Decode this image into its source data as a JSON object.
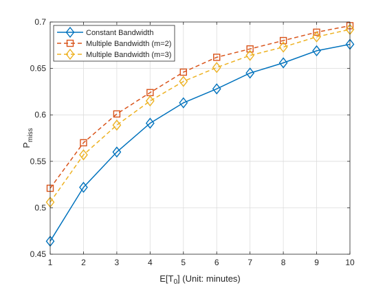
{
  "chart_data": {
    "type": "line",
    "title": "",
    "xlabel": {
      "main": "E[T",
      "sub": "0",
      "rest": "] (Unit: minutes)"
    },
    "ylabel": {
      "main": "P",
      "sub": "miss"
    },
    "x": [
      1,
      2,
      3,
      4,
      5,
      6,
      7,
      8,
      9,
      10
    ],
    "xlim": [
      1,
      10
    ],
    "ylim": [
      0.45,
      0.7
    ],
    "xticks": [
      "1",
      "2",
      "3",
      "4",
      "5",
      "6",
      "7",
      "8",
      "9",
      "10"
    ],
    "yticks": [
      "0.45",
      "0.5",
      "0.55",
      "0.6",
      "0.65",
      "0.7"
    ],
    "grid": true,
    "legend_position": "top-left",
    "series": [
      {
        "name": "Constant Bandwidth",
        "values": [
          0.464,
          0.522,
          0.56,
          0.591,
          0.613,
          0.628,
          0.645,
          0.656,
          0.669,
          0.676
        ],
        "color": "#0072BD",
        "dash": "solid",
        "marker": "diamond"
      },
      {
        "name": "Multiple Bandwidth (m=2)",
        "values": [
          0.521,
          0.57,
          0.601,
          0.624,
          0.646,
          0.662,
          0.671,
          0.68,
          0.689,
          0.696
        ],
        "color": "#D95319",
        "dash": "dashed",
        "marker": "square"
      },
      {
        "name": "Multiple Bandwidth (m=3)",
        "values": [
          0.506,
          0.557,
          0.589,
          0.615,
          0.636,
          0.651,
          0.664,
          0.673,
          0.684,
          0.692
        ],
        "color": "#EDB120",
        "dash": "dashed",
        "marker": "diamond"
      }
    ]
  }
}
